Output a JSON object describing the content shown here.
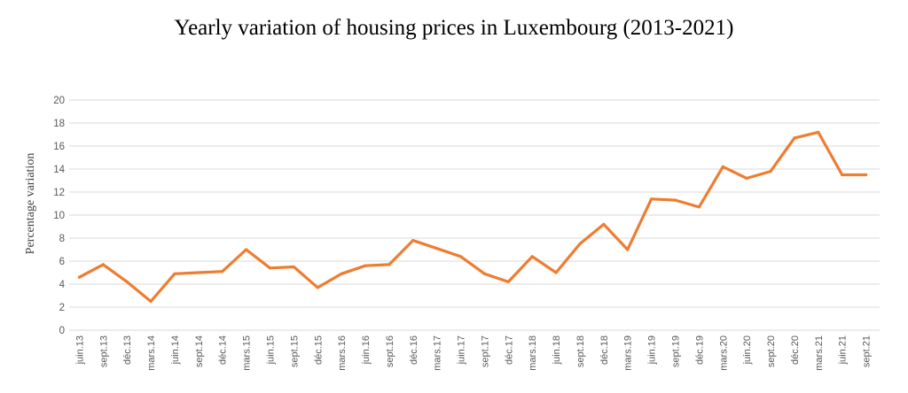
{
  "chart_data": {
    "type": "line",
    "title": "Yearly variation of housing prices in Luxembourg (2013-2021)",
    "ylabel": "Percentage variation",
    "xlabel": "",
    "ylim": [
      0,
      20
    ],
    "yticks": [
      0,
      2,
      4,
      6,
      8,
      10,
      12,
      14,
      16,
      18,
      20
    ],
    "grid": true,
    "legend": "none",
    "line_color": "#ED7D31",
    "categories": [
      "juin.13",
      "sept.13",
      "déc.13",
      "mars.14",
      "juin.14",
      "sept.14",
      "déc.14",
      "mars.15",
      "juin.15",
      "sept.15",
      "déc.15",
      "mars.16",
      "juin.16",
      "sept.16",
      "déc.16",
      "mars.17",
      "juin.17",
      "sept.17",
      "déc.17",
      "mars.18",
      "juin.18",
      "sept.18",
      "déc.18",
      "mars.19",
      "juin.19",
      "sept.19",
      "déc.19",
      "mars.20",
      "juin.20",
      "sept.20",
      "déc.20",
      "mars.21",
      "juin.21",
      "sept.21"
    ],
    "series": [
      {
        "values": [
          4.6,
          5.7,
          4.2,
          2.5,
          4.9,
          5.0,
          5.1,
          7.0,
          5.4,
          5.5,
          3.7,
          4.9,
          5.6,
          5.7,
          7.8,
          7.1,
          6.4,
          4.9,
          4.2,
          6.4,
          5.0,
          7.5,
          9.2,
          7.0,
          11.4,
          11.3,
          10.7,
          14.2,
          13.2,
          13.8,
          16.7,
          17.2,
          13.5,
          13.5
        ]
      }
    ]
  }
}
